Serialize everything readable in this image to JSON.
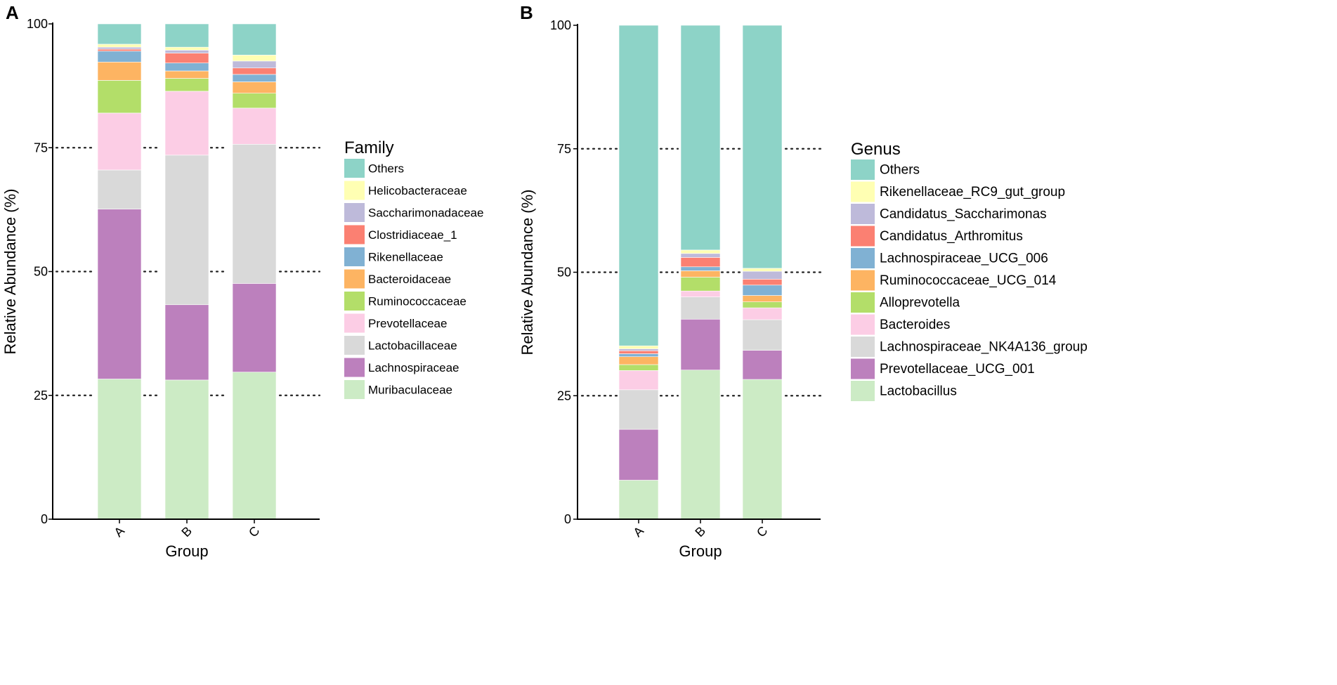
{
  "chart_data": [
    {
      "type": "bar",
      "stacked": true,
      "panel_label": "A",
      "title": "",
      "xlabel": "Group",
      "ylabel": "Relative Abundance (%)",
      "ylim": [
        0,
        100
      ],
      "yticks": [
        0,
        25,
        50,
        75,
        100
      ],
      "grid": "dotted horizontal at 25, 50, 75",
      "categories": [
        "A",
        "B",
        "C"
      ],
      "legend_title": "Family",
      "legend_position": "right",
      "series": [
        {
          "name": "Muribaculaceae",
          "color": "#ccebc5",
          "values": [
            28.3,
            28.1,
            29.7
          ]
        },
        {
          "name": "Lachnospiraceae",
          "color": "#bc80bd",
          "values": [
            34.3,
            15.2,
            17.9
          ]
        },
        {
          "name": "Lactobacillaceae",
          "color": "#d9d9d9",
          "values": [
            7.9,
            30.2,
            28.1
          ]
        },
        {
          "name": "Prevotellaceae",
          "color": "#fccde5",
          "values": [
            11.5,
            12.9,
            7.3
          ]
        },
        {
          "name": "Ruminococcaceae",
          "color": "#b3de69",
          "values": [
            6.6,
            2.6,
            3.0
          ]
        },
        {
          "name": "Bacteroidaceae",
          "color": "#fdb462",
          "values": [
            3.7,
            1.5,
            2.3
          ]
        },
        {
          "name": "Rikenellaceae",
          "color": "#80b1d3",
          "values": [
            2.2,
            1.6,
            1.5
          ]
        },
        {
          "name": "Clostridiaceae_1",
          "color": "#fb8072",
          "values": [
            0.4,
            2.0,
            1.3
          ]
        },
        {
          "name": "Saccharimonadaceae",
          "color": "#bebada",
          "values": [
            0.4,
            0.6,
            1.4
          ]
        },
        {
          "name": "Helicobacteraceae",
          "color": "#ffffb3",
          "values": [
            0.6,
            0.6,
            1.2
          ]
        },
        {
          "name": "Others",
          "color": "#8dd3c7",
          "values": [
            4.1,
            4.7,
            6.3
          ]
        }
      ]
    },
    {
      "type": "bar",
      "stacked": true,
      "panel_label": "B",
      "title": "",
      "xlabel": "Group",
      "ylabel": "Relative Abundance (%)",
      "ylim": [
        0,
        100
      ],
      "yticks": [
        0,
        25,
        50,
        75,
        100
      ],
      "grid": "dotted horizontal at 25, 50, 75",
      "categories": [
        "A",
        "B",
        "C"
      ],
      "legend_title": "Genus",
      "legend_position": "right",
      "series": [
        {
          "name": "Lactobacillus",
          "color": "#ccebc5",
          "values": [
            7.9,
            30.2,
            28.3
          ]
        },
        {
          "name": "Prevotellaceae_UCG_001",
          "color": "#bc80bd",
          "values": [
            10.3,
            10.3,
            5.9
          ]
        },
        {
          "name": "Lachnospiraceae_NK4A136_group",
          "color": "#d9d9d9",
          "values": [
            8.0,
            4.5,
            6.2
          ]
        },
        {
          "name": "Bacteroides",
          "color": "#fccde5",
          "values": [
            3.9,
            1.2,
            2.4
          ]
        },
        {
          "name": "Alloprevotella",
          "color": "#b3de69",
          "values": [
            1.2,
            2.8,
            1.2
          ]
        },
        {
          "name": "Ruminococcaceae_UCG_014",
          "color": "#fdb462",
          "values": [
            1.6,
            1.3,
            1.3
          ]
        },
        {
          "name": "Lachnospiraceae_UCG_006",
          "color": "#80b1d3",
          "values": [
            0.6,
            0.8,
            2.1
          ]
        },
        {
          "name": "Candidatus_Arthromitus",
          "color": "#fb8072",
          "values": [
            0.6,
            1.9,
            1.2
          ]
        },
        {
          "name": "Candidatus_Saccharimonas",
          "color": "#bebada",
          "values": [
            0.4,
            0.8,
            1.6
          ]
        },
        {
          "name": "Rikenellaceae_RC9_gut_group",
          "color": "#ffffb3",
          "values": [
            0.6,
            0.7,
            0.6
          ]
        },
        {
          "name": "Others",
          "color": "#8dd3c7",
          "values": [
            64.9,
            45.5,
            49.2
          ]
        }
      ]
    }
  ]
}
